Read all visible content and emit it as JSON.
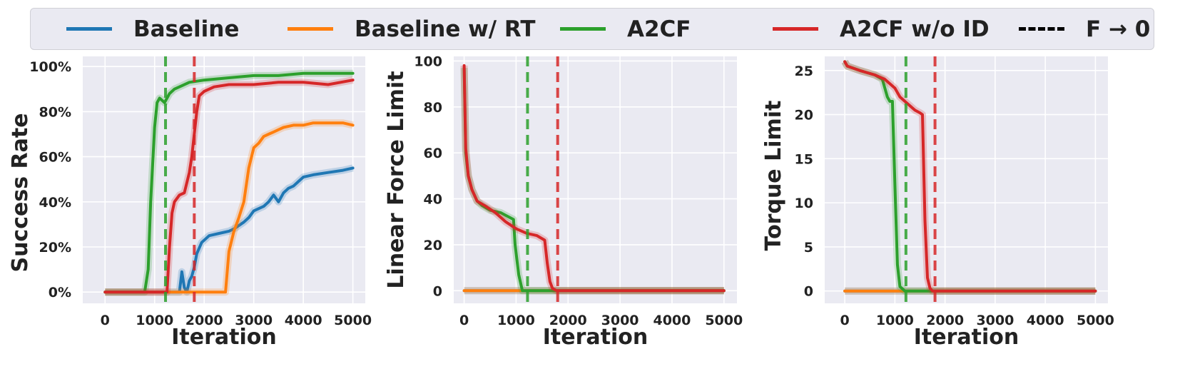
{
  "legend": {
    "items": [
      {
        "label": "Baseline",
        "color": "#1f77b4",
        "dash": false
      },
      {
        "label": "Baseline w/ RT",
        "color": "#ff7f0e",
        "dash": false
      },
      {
        "label": "A2CF",
        "color": "#2ca02c",
        "dash": false
      },
      {
        "label": "A2CF w/o ID",
        "color": "#d62728",
        "dash": false
      },
      {
        "label": "F → 0",
        "color": "#000000",
        "dash": true
      }
    ]
  },
  "chart_data": [
    {
      "type": "line",
      "xlabel": "Iteration",
      "ylabel": "Success Rate",
      "xlim": [
        -450,
        5250
      ],
      "ylim": [
        -0.05,
        1.045
      ],
      "xticks": [
        "0",
        "1000",
        "2000",
        "3000",
        "4000",
        "5000"
      ],
      "yticks": [
        "0%",
        "20%",
        "40%",
        "60%",
        "80%",
        "100%"
      ],
      "grid": true,
      "vlines": [
        {
          "x": 1220,
          "color": "#2ca02c",
          "series": "A2CF"
        },
        {
          "x": 1800,
          "color": "#d62728",
          "series": "A2CF w/o ID"
        }
      ],
      "series": [
        {
          "name": "Baseline",
          "color": "#1f77b4",
          "x": [
            0,
            1500,
            1550,
            1600,
            1650,
            1700,
            1750,
            1800,
            1850,
            1950,
            2100,
            2300,
            2500,
            2600,
            2800,
            2900,
            3000,
            3200,
            3300,
            3400,
            3500,
            3600,
            3700,
            3800,
            3900,
            4000,
            4200,
            4500,
            4800,
            5000
          ],
          "y": [
            0,
            0,
            0.09,
            0.02,
            0.0,
            0.05,
            0.07,
            0.11,
            0.17,
            0.22,
            0.25,
            0.26,
            0.27,
            0.28,
            0.31,
            0.33,
            0.36,
            0.38,
            0.4,
            0.43,
            0.4,
            0.44,
            0.46,
            0.47,
            0.49,
            0.51,
            0.52,
            0.53,
            0.54,
            0.55
          ]
        },
        {
          "name": "Baseline w/ RT",
          "color": "#ff7f0e",
          "x": [
            0,
            2430,
            2500,
            2600,
            2700,
            2800,
            2900,
            3000,
            3100,
            3200,
            3300,
            3400,
            3500,
            3600,
            3800,
            4000,
            4200,
            4500,
            4800,
            5000
          ],
          "y": [
            0,
            0,
            0.18,
            0.27,
            0.33,
            0.4,
            0.55,
            0.64,
            0.66,
            0.69,
            0.7,
            0.71,
            0.72,
            0.73,
            0.74,
            0.74,
            0.75,
            0.75,
            0.75,
            0.74
          ]
        },
        {
          "name": "A2CF",
          "color": "#2ca02c",
          "x": [
            0,
            800,
            870,
            920,
            1000,
            1050,
            1100,
            1150,
            1200,
            1250,
            1300,
            1400,
            1500,
            1700,
            2000,
            2500,
            3000,
            3500,
            4000,
            4500,
            5000
          ],
          "y": [
            0,
            0,
            0.1,
            0.4,
            0.73,
            0.84,
            0.86,
            0.85,
            0.84,
            0.86,
            0.88,
            0.9,
            0.91,
            0.93,
            0.94,
            0.95,
            0.96,
            0.96,
            0.97,
            0.97,
            0.97
          ]
        },
        {
          "name": "A2CF w/o ID",
          "color": "#d62728",
          "x": [
            0,
            1250,
            1300,
            1350,
            1400,
            1500,
            1600,
            1700,
            1750,
            1800,
            1850,
            1900,
            2000,
            2200,
            2500,
            3000,
            3500,
            4000,
            4500,
            5000
          ],
          "y": [
            0,
            0,
            0.2,
            0.35,
            0.4,
            0.43,
            0.44,
            0.53,
            0.6,
            0.7,
            0.8,
            0.87,
            0.89,
            0.91,
            0.92,
            0.92,
            0.93,
            0.93,
            0.92,
            0.94
          ]
        }
      ]
    },
    {
      "type": "line",
      "xlabel": "Iteration",
      "ylabel": "Linear Force Limit",
      "xlim": [
        -200,
        5250
      ],
      "ylim": [
        -5.5,
        102
      ],
      "xticks": [
        "0",
        "1000",
        "2000",
        "3000",
        "4000",
        "5000"
      ],
      "yticks": [
        "0",
        "20",
        "40",
        "60",
        "80",
        "100"
      ],
      "grid": true,
      "vlines": [
        {
          "x": 1220,
          "color": "#2ca02c",
          "series": "A2CF"
        },
        {
          "x": 1800,
          "color": "#d62728",
          "series": "A2CF w/o ID"
        }
      ],
      "series": [
        {
          "name": "Baseline",
          "color": "#1f77b4",
          "x": [
            0,
            5000
          ],
          "y": [
            0,
            0
          ]
        },
        {
          "name": "Baseline w/ RT",
          "color": "#ff7f0e",
          "x": [
            0,
            5000
          ],
          "y": [
            0,
            0
          ]
        },
        {
          "name": "A2CF",
          "color": "#2ca02c",
          "x": [
            0,
            30,
            80,
            150,
            250,
            350,
            500,
            700,
            950,
            980,
            1050,
            1120,
            1200,
            5000
          ],
          "y": [
            97,
            60,
            50,
            44,
            39,
            37,
            35,
            34,
            31,
            20,
            7,
            0,
            0,
            0
          ]
        },
        {
          "name": "A2CF w/o ID",
          "color": "#d62728",
          "x": [
            0,
            30,
            80,
            150,
            250,
            400,
            600,
            800,
            1000,
            1200,
            1400,
            1550,
            1600,
            1650,
            1700,
            1780,
            5000
          ],
          "y": [
            98,
            62,
            50,
            44,
            39,
            37,
            34,
            30,
            27,
            25,
            24,
            22,
            12,
            4,
            1,
            0,
            0
          ]
        }
      ]
    },
    {
      "type": "line",
      "xlabel": "Iteration",
      "ylabel": "Torque Limit",
      "xlim": [
        -400,
        5250
      ],
      "ylim": [
        -1.4,
        26.6
      ],
      "xticks": [
        "0",
        "1000",
        "2000",
        "3000",
        "4000",
        "5000"
      ],
      "yticks": [
        "0",
        "5",
        "10",
        "15",
        "20",
        "25"
      ],
      "grid": true,
      "vlines": [
        {
          "x": 1220,
          "color": "#2ca02c",
          "series": "A2CF"
        },
        {
          "x": 1800,
          "color": "#d62728",
          "series": "A2CF w/o ID"
        }
      ],
      "series": [
        {
          "name": "Baseline",
          "color": "#1f77b4",
          "x": [
            0,
            5000
          ],
          "y": [
            0,
            0
          ]
        },
        {
          "name": "Baseline w/ RT",
          "color": "#ff7f0e",
          "x": [
            0,
            5000
          ],
          "y": [
            0,
            0
          ]
        },
        {
          "name": "A2CF",
          "color": "#2ca02c",
          "x": [
            0,
            50,
            300,
            600,
            750,
            800,
            850,
            900,
            950,
            1000,
            1050,
            1100,
            1200,
            5000
          ],
          "y": [
            26,
            25.5,
            25,
            24.5,
            24,
            23,
            22,
            21.5,
            21.5,
            12,
            3,
            0.5,
            0,
            0
          ]
        },
        {
          "name": "A2CF w/o ID",
          "color": "#d62728",
          "x": [
            0,
            50,
            300,
            600,
            800,
            1000,
            1100,
            1200,
            1300,
            1400,
            1500,
            1550,
            1600,
            1650,
            1700,
            1750,
            5000
          ],
          "y": [
            26,
            25.5,
            25,
            24.5,
            24,
            23,
            22,
            21.5,
            21,
            20.5,
            20.2,
            20.0,
            8,
            1.5,
            0.3,
            0,
            0
          ]
        }
      ]
    }
  ]
}
